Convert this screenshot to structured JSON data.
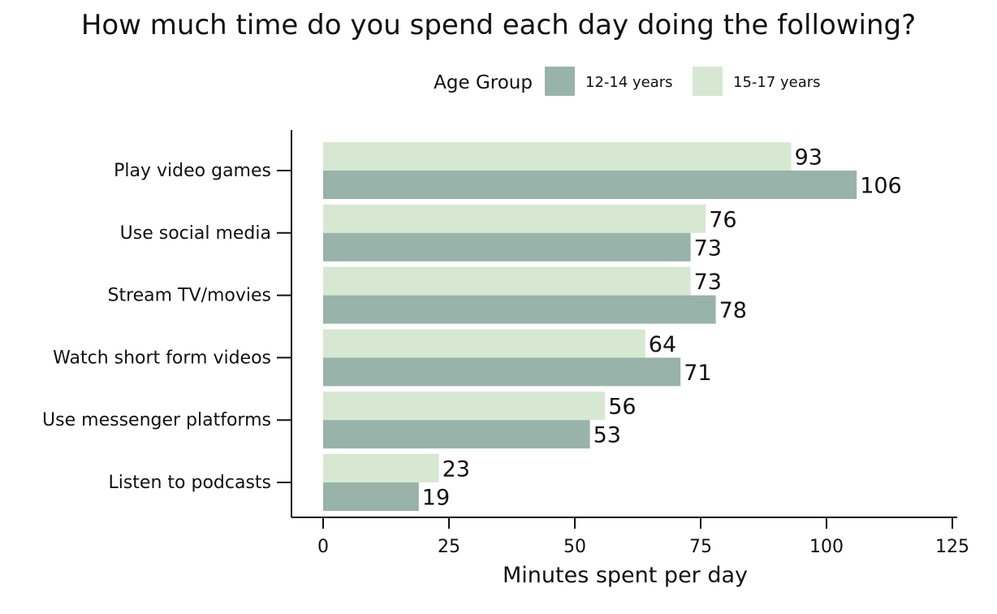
{
  "chart_data": {
    "type": "bar",
    "orientation": "horizontal",
    "title": "How much time do you spend each day doing the following?",
    "xlabel": "Minutes spent per day",
    "ylabel": "",
    "xlim": [
      0,
      125
    ],
    "xticks": [
      0,
      25,
      50,
      75,
      100,
      125
    ],
    "grid": false,
    "legend": {
      "title": "Age Group",
      "placement": "top-right"
    },
    "categories": [
      "Play video games",
      "Use social media",
      "Stream TV/movies",
      "Watch short form videos",
      "Use messenger platforms",
      "Listen to podcasts"
    ],
    "series": [
      {
        "name": "12-14 years",
        "color": "#98b3aa",
        "values": [
          106,
          73,
          78,
          71,
          53,
          19
        ]
      },
      {
        "name": "15-17 years",
        "color": "#d6e8d1",
        "values": [
          93,
          76,
          73,
          64,
          56,
          23
        ]
      }
    ]
  }
}
